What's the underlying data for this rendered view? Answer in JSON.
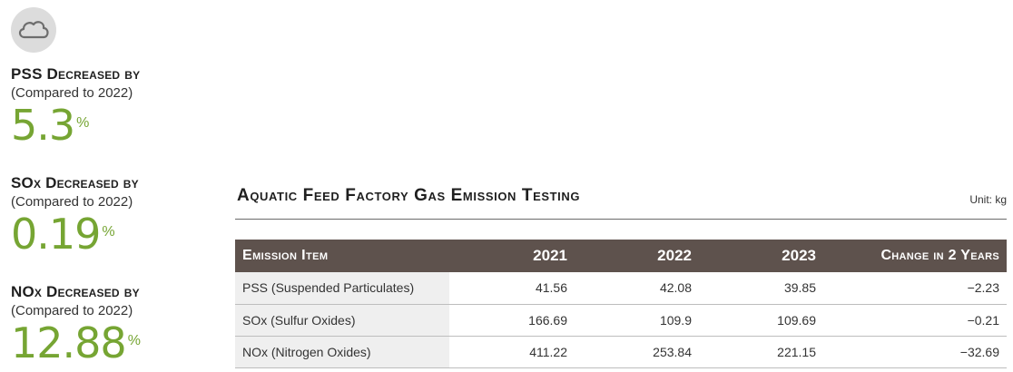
{
  "sidebar": {
    "icon": "cloud-icon",
    "stats": [
      {
        "title": "PSS Decreased by",
        "subtitle": "(Compared to 2022)",
        "value": "5.3",
        "unit": "%"
      },
      {
        "title": "SOx Decreased by",
        "subtitle": "(Compared to 2022)",
        "value": "0.19",
        "unit": "%"
      },
      {
        "title": "NOx Decreased by",
        "subtitle": "(Compared to 2022)",
        "value": "12.88",
        "unit": "%"
      }
    ]
  },
  "table": {
    "title": "Aquatic Feed Factory Gas Emission Testing",
    "unit": "Unit: kg",
    "headers": [
      "Emission Item",
      "2021",
      "2022",
      "2023",
      "Change in 2 Years"
    ],
    "rows": [
      {
        "item": "PSS",
        "item_desc": " (Suspended Particulates)",
        "y2021": "41.56",
        "y2022": "42.08",
        "y2023": "39.85",
        "change": "−2.23"
      },
      {
        "item": "SOx",
        "item_desc": " (Sulfur Oxides)",
        "y2021": "166.69",
        "y2022": "109.9",
        "y2023": "109.69",
        "change": "−0.21"
      },
      {
        "item": "NOx",
        "item_desc": " (Nitrogen Oxides)",
        "y2021": "411.22",
        "y2022": "253.84",
        "y2023": "221.15",
        "change": "−32.69"
      }
    ]
  },
  "colors": {
    "accent_green": "#76a533",
    "header_brown": "#5e524d",
    "row_shade": "#efefef"
  }
}
